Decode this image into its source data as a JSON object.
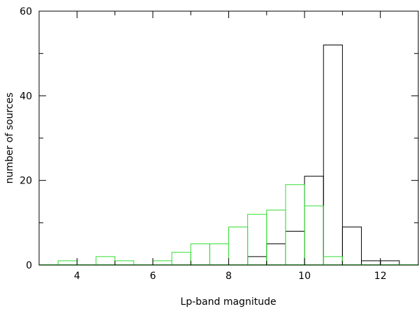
{
  "chart_data": {
    "type": "bar",
    "xlabel": "Lp-band magnitude",
    "ylabel": "number of sources",
    "xlim": [
      3.0,
      13.0
    ],
    "ylim": [
      0,
      60
    ],
    "bin_width": 0.5,
    "grid": false,
    "x_major_ticks": [
      4,
      6,
      8,
      10,
      12
    ],
    "x_minor_ticks": [
      5,
      7,
      9,
      11
    ],
    "y_major_ticks": [
      0,
      20,
      40,
      60
    ],
    "y_minor_ticks": [
      10,
      30,
      50
    ],
    "x_tick_labels": [
      "4",
      "6",
      "8",
      "10",
      "12"
    ],
    "y_tick_labels": [
      "0",
      "20",
      "40",
      "60"
    ],
    "series": [
      {
        "color": "#000000",
        "bins": [
          {
            "x0": 8.5,
            "x1": 9.0,
            "value": 2
          },
          {
            "x0": 9.0,
            "x1": 9.5,
            "value": 5
          },
          {
            "x0": 9.5,
            "x1": 10.0,
            "value": 8
          },
          {
            "x0": 10.0,
            "x1": 10.5,
            "value": 21
          },
          {
            "x0": 10.5,
            "x1": 11.0,
            "value": 52
          },
          {
            "x0": 11.0,
            "x1": 11.5,
            "value": 9
          },
          {
            "x0": 11.5,
            "x1": 12.0,
            "value": 1
          },
          {
            "x0": 12.0,
            "x1": 12.5,
            "value": 1
          }
        ]
      },
      {
        "color": "#33dd33",
        "bins": [
          {
            "x0": 3.5,
            "x1": 4.0,
            "value": 1
          },
          {
            "x0": 4.5,
            "x1": 5.0,
            "value": 2
          },
          {
            "x0": 5.0,
            "x1": 5.5,
            "value": 1
          },
          {
            "x0": 6.0,
            "x1": 6.5,
            "value": 1
          },
          {
            "x0": 6.5,
            "x1": 7.0,
            "value": 3
          },
          {
            "x0": 7.0,
            "x1": 7.5,
            "value": 5
          },
          {
            "x0": 7.5,
            "x1": 8.0,
            "value": 5
          },
          {
            "x0": 8.0,
            "x1": 8.5,
            "value": 9
          },
          {
            "x0": 8.5,
            "x1": 9.0,
            "value": 12
          },
          {
            "x0": 9.0,
            "x1": 9.5,
            "value": 13
          },
          {
            "x0": 9.5,
            "x1": 10.0,
            "value": 19
          },
          {
            "x0": 10.0,
            "x1": 10.5,
            "value": 14
          },
          {
            "x0": 10.5,
            "x1": 11.0,
            "value": 2
          }
        ]
      }
    ]
  }
}
